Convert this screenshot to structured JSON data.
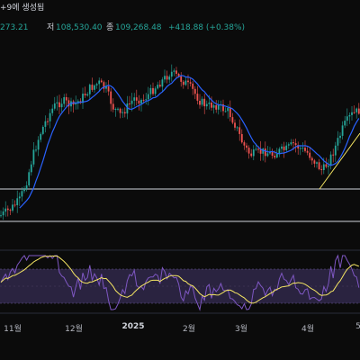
{
  "header": {
    "title_fragment": "+9에 생성됨",
    "open_label": "",
    "open_value": "273.21",
    "low_label": "저",
    "low_value": "108,530.40",
    "close_label": "종",
    "close_value": "109,268.48",
    "change_text": "+418.88 (+0.38%)"
  },
  "chart_data": {
    "type": "candlestick",
    "x_ticks": [
      "11월",
      "12월",
      "2025",
      "2월",
      "3월",
      "4월",
      "5"
    ],
    "bold_ticks": [
      "2025"
    ],
    "price_panel": {
      "horizontal_levels": [
        "upper",
        "lower"
      ],
      "ma_line_color": "#2962ff",
      "trendline_color": "#f5e663"
    },
    "indicator_panel": {
      "series": [
        {
          "color": "#7e57c2"
        },
        {
          "color": "#f5e663"
        }
      ],
      "band_fill": "#2a2340"
    },
    "colors": {
      "up": "#26a69a",
      "down": "#ef5350",
      "background": "#0b0b0b",
      "level_line": "#d1d4dc"
    }
  }
}
